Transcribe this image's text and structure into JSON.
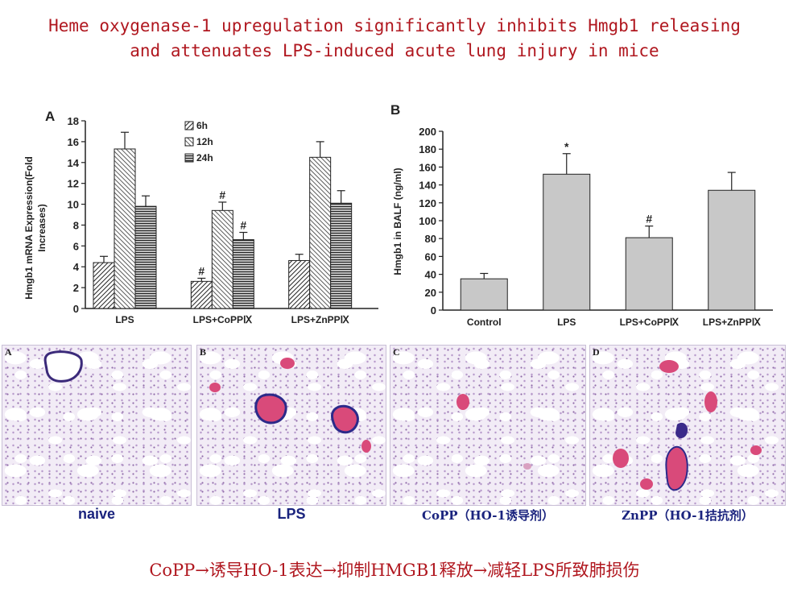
{
  "title_line1": "Heme oxygenase-1 upregulation significantly inhibits Hmgb1 releasing",
  "title_line2": "and attenuates LPS-induced acute lung injury in mice",
  "chart_data": [
    {
      "type": "bar",
      "panel_label": "A",
      "ylabel_line1": "Hmgb1 mRNA Expression(Fold",
      "ylabel_line2": "Increases)",
      "ylim": [
        0,
        18
      ],
      "yticks": [
        0,
        2,
        4,
        6,
        8,
        10,
        12,
        14,
        16,
        18
      ],
      "categories": [
        "LPS",
        "LPS+CoPPⅨ",
        "LPS+ZnPPⅨ"
      ],
      "series": [
        {
          "name": "6h",
          "values": [
            4.4,
            2.6,
            4.6
          ],
          "errors": [
            0.6,
            0.3,
            0.6
          ]
        },
        {
          "name": "12h",
          "values": [
            15.3,
            9.4,
            14.5
          ],
          "errors": [
            1.6,
            0.8,
            1.5
          ]
        },
        {
          "name": "24h",
          "values": [
            9.8,
            6.6,
            10.1
          ],
          "errors": [
            1.0,
            0.7,
            1.2
          ]
        }
      ],
      "annotations": [
        {
          "category": 1,
          "series": 0,
          "text": "#"
        },
        {
          "category": 1,
          "series": 1,
          "text": "#"
        },
        {
          "category": 1,
          "series": 2,
          "text": "#"
        }
      ],
      "legend_position": "top-center",
      "grid": false
    },
    {
      "type": "bar",
      "panel_label": "B",
      "ylabel": "Hmgb1 in BALF (ng/ml)",
      "ylim": [
        0,
        200
      ],
      "yticks": [
        0,
        20,
        40,
        60,
        80,
        100,
        120,
        140,
        160,
        180,
        200
      ],
      "categories": [
        "Control",
        "LPS",
        "LPS+CoPPⅨ",
        "LPS+ZnPPⅨ"
      ],
      "values": [
        35,
        152,
        81,
        134
      ],
      "errors": [
        6,
        23,
        13,
        20
      ],
      "annotations": [
        {
          "category": 1,
          "text": "*"
        },
        {
          "category": 2,
          "text": "#"
        }
      ],
      "bar_color": "#c8c8c8",
      "grid": false
    }
  ],
  "histology": [
    {
      "label": "A",
      "caption": "naive",
      "vessels": 0
    },
    {
      "label": "B",
      "caption": "LPS",
      "vessels": 3
    },
    {
      "label": "C",
      "caption": "CoPP（HO-1诱导剂）",
      "vessels": 1
    },
    {
      "label": "D",
      "caption": "ZnPP（HO-1拮抗剂）",
      "vessels": 3
    }
  ],
  "conclusion": "CoPP→诱导HO-1表达→抑制HMGB1释放→减轻LPS所致肺损伤"
}
